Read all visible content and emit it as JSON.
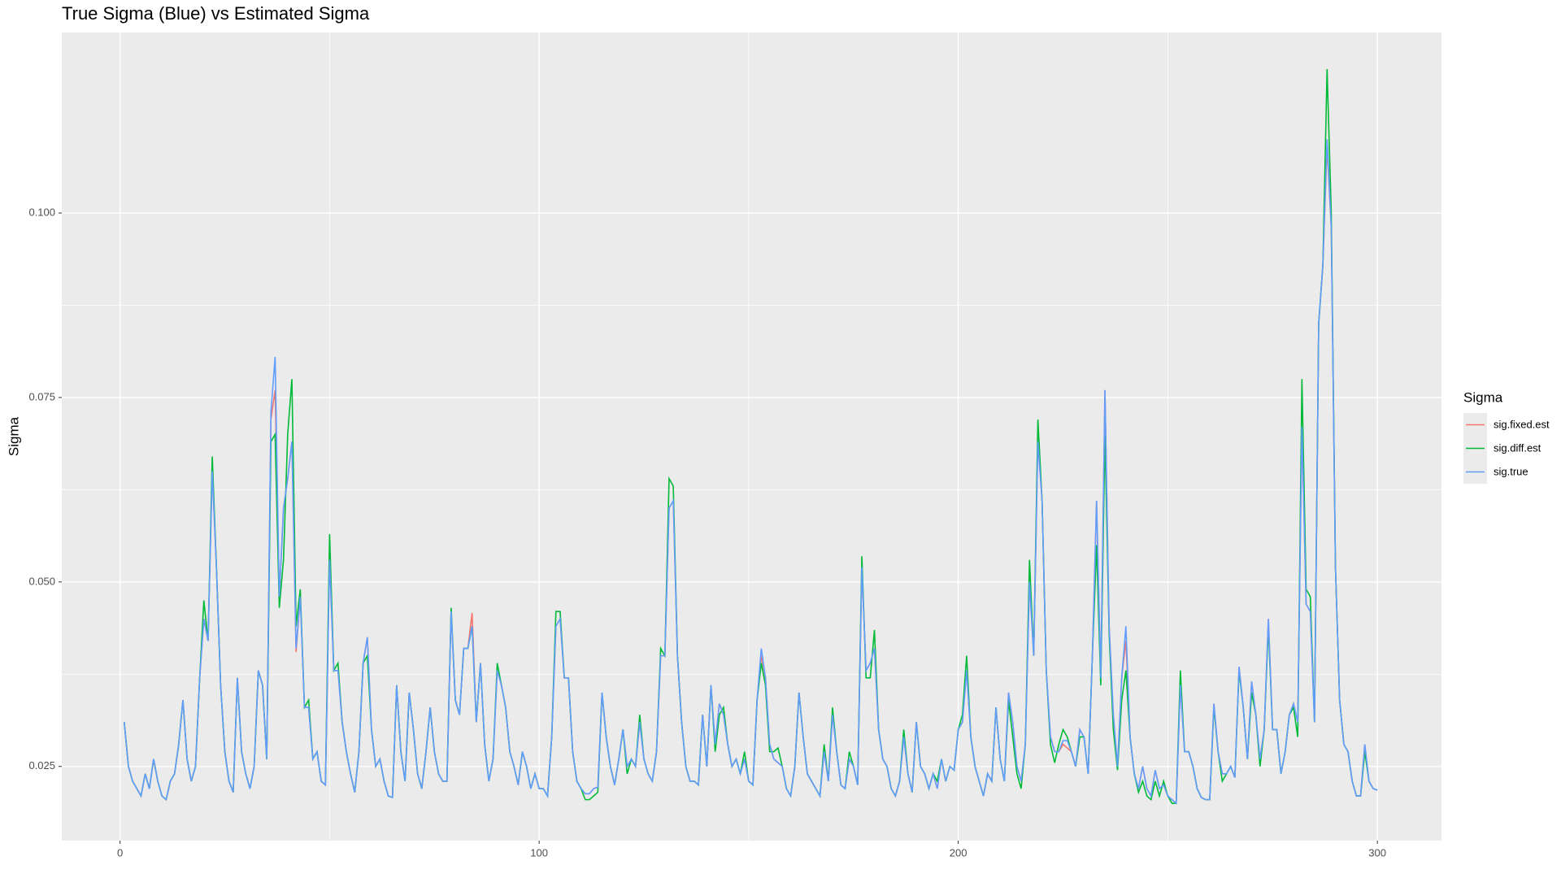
{
  "chart_data": {
    "type": "line",
    "title": "True Sigma (Blue) vs Estimated Sigma",
    "y_label": "Sigma",
    "legend_title": "Sigma",
    "legend": "right",
    "grid": true,
    "xlim": [
      -13.9,
      315.3
    ],
    "ylim": [
      0.01495,
      0.12446
    ],
    "xticks": [
      0,
      100,
      200,
      300
    ],
    "yticks": [
      0.025,
      {
        "value": 0.05,
        "label": "0.050"
      },
      0.075,
      {
        "value": 0.1,
        "label": "0.100"
      }
    ],
    "x": [
      1,
      2,
      3,
      4,
      5,
      6,
      7,
      8,
      9,
      10,
      11,
      12,
      13,
      14,
      15,
      16,
      17,
      18,
      19,
      20,
      21,
      22,
      23,
      24,
      25,
      26,
      27,
      28,
      29,
      30,
      31,
      32,
      33,
      34,
      35,
      36,
      37,
      38,
      39,
      40,
      41,
      42,
      43,
      44,
      45,
      46,
      47,
      48,
      49,
      50,
      51,
      52,
      53,
      54,
      55,
      56,
      57,
      58,
      59,
      60,
      61,
      62,
      63,
      64,
      65,
      66,
      67,
      68,
      69,
      70,
      71,
      72,
      73,
      74,
      75,
      76,
      77,
      78,
      79,
      80,
      81,
      82,
      83,
      84,
      85,
      86,
      87,
      88,
      89,
      90,
      91,
      92,
      93,
      94,
      95,
      96,
      97,
      98,
      99,
      100,
      101,
      102,
      103,
      104,
      105,
      106,
      107,
      108,
      109,
      110,
      111,
      112,
      113,
      114,
      115,
      116,
      117,
      118,
      119,
      120,
      121,
      122,
      123,
      124,
      125,
      126,
      127,
      128,
      129,
      130,
      131,
      132,
      133,
      134,
      135,
      136,
      137,
      138,
      139,
      140,
      141,
      142,
      143,
      144,
      145,
      146,
      147,
      148,
      149,
      150,
      151,
      152,
      153,
      154,
      155,
      156,
      157,
      158,
      159,
      160,
      161,
      162,
      163,
      164,
      165,
      166,
      167,
      168,
      169,
      170,
      171,
      172,
      173,
      174,
      175,
      176,
      177,
      178,
      179,
      180,
      181,
      182,
      183,
      184,
      185,
      186,
      187,
      188,
      189,
      190,
      191,
      192,
      193,
      194,
      195,
      196,
      197,
      198,
      199,
      200,
      201,
      202,
      203,
      204,
      205,
      206,
      207,
      208,
      209,
      210,
      211,
      212,
      213,
      214,
      215,
      216,
      217,
      218,
      219,
      220,
      221,
      222,
      223,
      224,
      225,
      226,
      227,
      228,
      229,
      230,
      231,
      232,
      233,
      234,
      235,
      236,
      237,
      238,
      239,
      240,
      241,
      242,
      243,
      244,
      245,
      246,
      247,
      248,
      249,
      250,
      251,
      252,
      253,
      254,
      255,
      256,
      257,
      258,
      259,
      260,
      261,
      262,
      263,
      264,
      265,
      266,
      267,
      268,
      269,
      270,
      271,
      272,
      273,
      274,
      275,
      276,
      277,
      278,
      279,
      280,
      281,
      282,
      283,
      284,
      285,
      286,
      287,
      288,
      289,
      290,
      291,
      292,
      293,
      294,
      295,
      296,
      297,
      298,
      299,
      300
    ],
    "series": [
      {
        "name": "sig.fixed.est",
        "color": "#f8766d",
        "values": [
          0.031,
          0.025,
          0.023,
          0.022,
          0.021,
          0.024,
          0.022,
          0.026,
          0.023,
          0.021,
          0.0205,
          0.023,
          0.024,
          0.028,
          0.034,
          0.026,
          0.023,
          0.025,
          0.037,
          0.045,
          0.042,
          0.065,
          0.052,
          0.036,
          0.027,
          0.023,
          0.0215,
          0.037,
          0.027,
          0.024,
          0.022,
          0.025,
          0.038,
          0.036,
          0.026,
          0.072,
          0.076,
          0.048,
          0.06,
          0.064,
          0.069,
          0.0405,
          0.048,
          0.033,
          0.033,
          0.026,
          0.027,
          0.023,
          0.0225,
          0.053,
          0.038,
          0.038,
          0.031,
          0.027,
          0.024,
          0.0215,
          0.027,
          0.039,
          0.0425,
          0.03,
          0.025,
          0.026,
          0.023,
          0.021,
          0.0208,
          0.036,
          0.027,
          0.023,
          0.035,
          0.03,
          0.024,
          0.022,
          0.027,
          0.033,
          0.027,
          0.024,
          0.023,
          0.023,
          0.046,
          0.034,
          0.032,
          0.041,
          0.041,
          0.0458,
          0.031,
          0.039,
          0.028,
          0.023,
          0.026,
          0.038,
          0.036,
          0.033,
          0.027,
          0.025,
          0.0225,
          0.027,
          0.025,
          0.022,
          0.024,
          0.022,
          0.022,
          0.021,
          0.029,
          0.044,
          0.045,
          0.037,
          0.037,
          0.027,
          0.023,
          0.022,
          0.0213,
          0.0213,
          0.022,
          0.0222,
          0.035,
          0.029,
          0.025,
          0.0225,
          0.026,
          0.03,
          0.025,
          0.026,
          0.025,
          0.031,
          0.026,
          0.024,
          0.023,
          0.027,
          0.04,
          0.04,
          0.06,
          0.061,
          0.04,
          0.031,
          0.025,
          0.023,
          0.023,
          0.0225,
          0.032,
          0.025,
          0.036,
          0.028,
          0.0335,
          0.032,
          0.028,
          0.025,
          0.026,
          0.024,
          0.026,
          0.023,
          0.0225,
          0.034,
          0.04,
          0.037,
          0.028,
          0.026,
          0.0255,
          0.025,
          0.022,
          0.021,
          0.025,
          0.035,
          0.029,
          0.024,
          0.023,
          0.022,
          0.021,
          0.027,
          0.023,
          0.032,
          0.027,
          0.0225,
          0.022,
          0.026,
          0.025,
          0.0225,
          0.052,
          0.038,
          0.039,
          0.041,
          0.03,
          0.026,
          0.025,
          0.022,
          0.021,
          0.023,
          0.029,
          0.024,
          0.0215,
          0.031,
          0.025,
          0.024,
          0.022,
          0.024,
          0.022,
          0.026,
          0.023,
          0.025,
          0.0245,
          0.03,
          0.031,
          0.038,
          0.029,
          0.025,
          0.023,
          0.021,
          0.024,
          0.023,
          0.033,
          0.026,
          0.023,
          0.035,
          0.031,
          0.025,
          0.023,
          0.028,
          0.05,
          0.04,
          0.069,
          0.061,
          0.038,
          0.029,
          0.027,
          0.027,
          0.028,
          0.0275,
          0.027,
          0.025,
          0.03,
          0.029,
          0.024,
          0.04,
          0.061,
          0.037,
          0.076,
          0.044,
          0.032,
          0.025,
          0.037,
          0.042,
          0.029,
          0.024,
          0.022,
          0.025,
          0.022,
          0.021,
          0.0245,
          0.022,
          0.0225,
          0.021,
          0.0205,
          0.02,
          0.036,
          0.027,
          0.027,
          0.025,
          0.022,
          0.0208,
          0.0205,
          0.0205,
          0.0335,
          0.027,
          0.024,
          0.024,
          0.025,
          0.0235,
          0.0385,
          0.033,
          0.026,
          0.0365,
          0.032,
          0.026,
          0.03,
          0.045,
          0.03,
          0.03,
          0.024,
          0.027,
          0.032,
          0.0335,
          0.031,
          0.071,
          0.047,
          0.046,
          0.031,
          0.085,
          0.093,
          0.109,
          0.098,
          0.052,
          0.034,
          0.028,
          0.027,
          0.023,
          0.021,
          0.021,
          0.028,
          0.023,
          0.022,
          0.0218
        ]
      },
      {
        "name": "sig.diff.est",
        "color": "#00ba38",
        "values": [
          0.031,
          0.025,
          0.023,
          0.022,
          0.021,
          0.024,
          0.022,
          0.026,
          0.023,
          0.021,
          0.0205,
          0.023,
          0.024,
          0.028,
          0.034,
          0.026,
          0.023,
          0.025,
          0.037,
          0.0475,
          0.042,
          0.067,
          0.052,
          0.036,
          0.027,
          0.023,
          0.0215,
          0.037,
          0.027,
          0.024,
          0.022,
          0.025,
          0.038,
          0.036,
          0.026,
          0.069,
          0.07,
          0.0465,
          0.053,
          0.07,
          0.0775,
          0.044,
          0.049,
          0.033,
          0.034,
          0.026,
          0.027,
          0.023,
          0.0225,
          0.0565,
          0.038,
          0.039,
          0.031,
          0.027,
          0.024,
          0.0215,
          0.027,
          0.039,
          0.04,
          0.03,
          0.025,
          0.026,
          0.023,
          0.021,
          0.0208,
          0.036,
          0.027,
          0.023,
          0.035,
          0.03,
          0.024,
          0.022,
          0.027,
          0.033,
          0.027,
          0.024,
          0.023,
          0.023,
          0.0465,
          0.034,
          0.032,
          0.041,
          0.041,
          0.044,
          0.031,
          0.039,
          0.028,
          0.023,
          0.026,
          0.039,
          0.036,
          0.033,
          0.027,
          0.025,
          0.0225,
          0.027,
          0.025,
          0.022,
          0.024,
          0.022,
          0.022,
          0.021,
          0.029,
          0.046,
          0.046,
          0.037,
          0.037,
          0.027,
          0.023,
          0.022,
          0.0205,
          0.0205,
          0.021,
          0.0215,
          0.035,
          0.029,
          0.025,
          0.0225,
          0.026,
          0.03,
          0.024,
          0.026,
          0.025,
          0.032,
          0.026,
          0.024,
          0.023,
          0.027,
          0.041,
          0.04,
          0.064,
          0.063,
          0.04,
          0.031,
          0.025,
          0.023,
          0.023,
          0.0225,
          0.032,
          0.025,
          0.036,
          0.027,
          0.032,
          0.033,
          0.028,
          0.025,
          0.026,
          0.024,
          0.027,
          0.023,
          0.0225,
          0.034,
          0.039,
          0.036,
          0.027,
          0.027,
          0.0275,
          0.025,
          0.022,
          0.021,
          0.025,
          0.035,
          0.029,
          0.024,
          0.023,
          0.022,
          0.021,
          0.028,
          0.023,
          0.033,
          0.027,
          0.0225,
          0.022,
          0.027,
          0.025,
          0.0225,
          0.0535,
          0.037,
          0.037,
          0.0435,
          0.03,
          0.026,
          0.025,
          0.022,
          0.021,
          0.023,
          0.03,
          0.024,
          0.0215,
          0.031,
          0.025,
          0.024,
          0.022,
          0.024,
          0.023,
          0.026,
          0.023,
          0.025,
          0.0245,
          0.03,
          0.032,
          0.04,
          0.029,
          0.025,
          0.023,
          0.021,
          0.024,
          0.023,
          0.033,
          0.026,
          0.023,
          0.034,
          0.029,
          0.024,
          0.022,
          0.028,
          0.053,
          0.04,
          0.072,
          0.061,
          0.038,
          0.028,
          0.0255,
          0.028,
          0.03,
          0.029,
          0.027,
          0.025,
          0.029,
          0.029,
          0.024,
          0.04,
          0.055,
          0.036,
          0.07,
          0.043,
          0.03,
          0.0245,
          0.034,
          0.038,
          0.029,
          0.024,
          0.0215,
          0.023,
          0.021,
          0.0205,
          0.023,
          0.021,
          0.023,
          0.021,
          0.02,
          0.02,
          0.038,
          0.027,
          0.027,
          0.025,
          0.022,
          0.0208,
          0.0205,
          0.0205,
          0.033,
          0.027,
          0.023,
          0.024,
          0.025,
          0.0235,
          0.038,
          0.033,
          0.026,
          0.035,
          0.032,
          0.025,
          0.03,
          0.044,
          0.03,
          0.03,
          0.024,
          0.027,
          0.032,
          0.033,
          0.029,
          0.0775,
          0.049,
          0.048,
          0.031,
          0.085,
          0.093,
          0.1195,
          0.1,
          0.052,
          0.034,
          0.028,
          0.027,
          0.023,
          0.021,
          0.021,
          0.027,
          0.023,
          0.022,
          0.0218
        ]
      },
      {
        "name": "sig.true",
        "color": "#619cff",
        "values": [
          0.031,
          0.025,
          0.023,
          0.022,
          0.021,
          0.024,
          0.022,
          0.026,
          0.023,
          0.021,
          0.0205,
          0.023,
          0.024,
          0.028,
          0.034,
          0.026,
          0.023,
          0.025,
          0.037,
          0.045,
          0.042,
          0.065,
          0.052,
          0.036,
          0.027,
          0.023,
          0.0215,
          0.037,
          0.027,
          0.024,
          0.022,
          0.025,
          0.038,
          0.036,
          0.026,
          0.073,
          0.0805,
          0.048,
          0.06,
          0.064,
          0.069,
          0.041,
          0.048,
          0.033,
          0.033,
          0.026,
          0.027,
          0.023,
          0.0225,
          0.053,
          0.038,
          0.038,
          0.031,
          0.027,
          0.024,
          0.0215,
          0.027,
          0.039,
          0.0425,
          0.03,
          0.025,
          0.026,
          0.023,
          0.021,
          0.0208,
          0.036,
          0.027,
          0.023,
          0.035,
          0.03,
          0.024,
          0.022,
          0.027,
          0.033,
          0.027,
          0.024,
          0.023,
          0.023,
          0.046,
          0.034,
          0.032,
          0.041,
          0.041,
          0.044,
          0.031,
          0.039,
          0.028,
          0.023,
          0.026,
          0.038,
          0.036,
          0.033,
          0.027,
          0.025,
          0.0225,
          0.027,
          0.025,
          0.022,
          0.024,
          0.022,
          0.022,
          0.021,
          0.029,
          0.044,
          0.045,
          0.037,
          0.037,
          0.027,
          0.023,
          0.022,
          0.0213,
          0.0213,
          0.022,
          0.0222,
          0.035,
          0.029,
          0.025,
          0.0225,
          0.026,
          0.03,
          0.025,
          0.026,
          0.025,
          0.031,
          0.026,
          0.024,
          0.023,
          0.027,
          0.04,
          0.04,
          0.06,
          0.061,
          0.04,
          0.031,
          0.025,
          0.023,
          0.023,
          0.0225,
          0.032,
          0.025,
          0.036,
          0.028,
          0.0335,
          0.032,
          0.028,
          0.025,
          0.026,
          0.024,
          0.026,
          0.023,
          0.0225,
          0.034,
          0.041,
          0.037,
          0.028,
          0.026,
          0.0255,
          0.025,
          0.022,
          0.021,
          0.025,
          0.035,
          0.029,
          0.024,
          0.023,
          0.022,
          0.021,
          0.027,
          0.023,
          0.032,
          0.027,
          0.0225,
          0.022,
          0.026,
          0.025,
          0.0225,
          0.052,
          0.038,
          0.039,
          0.041,
          0.03,
          0.026,
          0.025,
          0.022,
          0.021,
          0.023,
          0.029,
          0.024,
          0.0215,
          0.031,
          0.025,
          0.024,
          0.022,
          0.024,
          0.022,
          0.026,
          0.023,
          0.025,
          0.0245,
          0.03,
          0.031,
          0.038,
          0.029,
          0.025,
          0.023,
          0.021,
          0.024,
          0.023,
          0.033,
          0.026,
          0.023,
          0.035,
          0.031,
          0.025,
          0.023,
          0.028,
          0.05,
          0.04,
          0.069,
          0.061,
          0.038,
          0.029,
          0.027,
          0.027,
          0.0285,
          0.0285,
          0.027,
          0.025,
          0.03,
          0.029,
          0.024,
          0.04,
          0.061,
          0.037,
          0.076,
          0.044,
          0.032,
          0.025,
          0.037,
          0.044,
          0.029,
          0.024,
          0.022,
          0.025,
          0.022,
          0.021,
          0.0245,
          0.022,
          0.0225,
          0.021,
          0.0205,
          0.02,
          0.036,
          0.027,
          0.027,
          0.025,
          0.022,
          0.0208,
          0.0205,
          0.0205,
          0.0335,
          0.027,
          0.024,
          0.024,
          0.025,
          0.0235,
          0.0385,
          0.033,
          0.026,
          0.0365,
          0.032,
          0.026,
          0.03,
          0.045,
          0.03,
          0.03,
          0.024,
          0.027,
          0.032,
          0.0335,
          0.031,
          0.071,
          0.047,
          0.046,
          0.031,
          0.085,
          0.093,
          0.11,
          0.098,
          0.052,
          0.034,
          0.028,
          0.027,
          0.023,
          0.021,
          0.021,
          0.028,
          0.023,
          0.022,
          0.0218
        ]
      }
    ]
  }
}
